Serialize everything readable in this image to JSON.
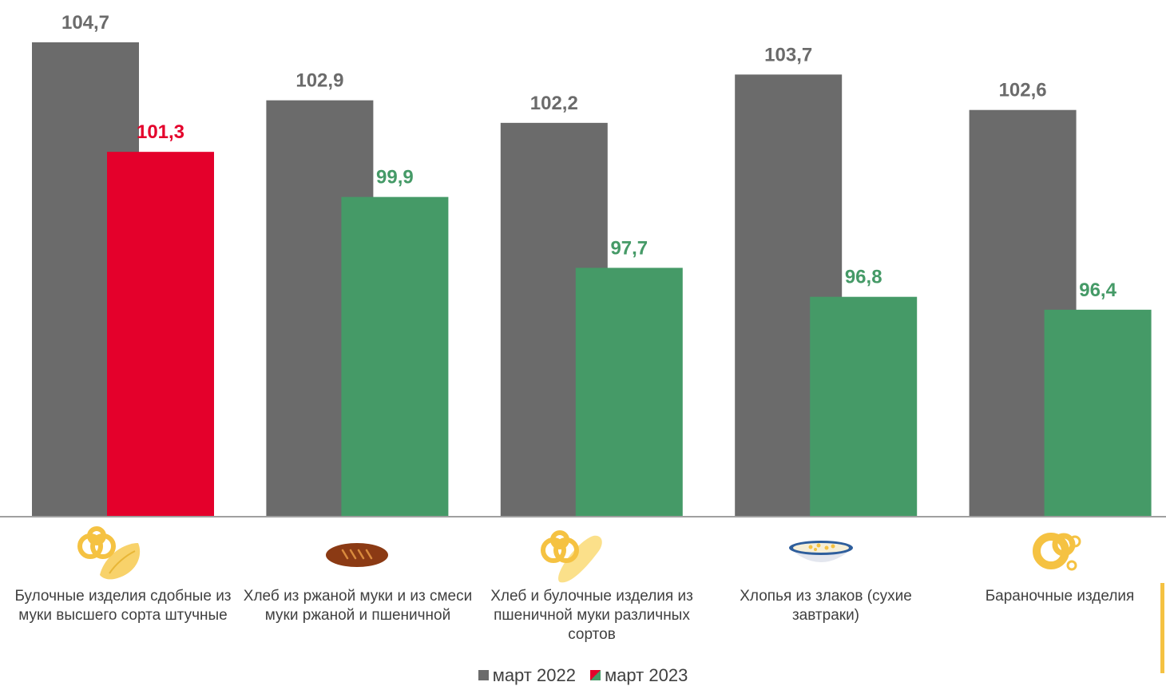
{
  "chart_data": {
    "type": "bar",
    "categories": [
      "Булочные изделия сдобные из муки высшего сорта штучные",
      "Хлеб из ржаной муки и из смеси муки ржаной и пшеничной",
      "Хлеб и булочные изделия из пшеничной муки различных сортов",
      "Хлопья из злаков (сухие завтраки)",
      "Бараночные изделия"
    ],
    "series": [
      {
        "name": "март 2022",
        "values": [
          104.7,
          102.9,
          102.2,
          103.7,
          102.6
        ],
        "labels": [
          "104,7",
          "102,9",
          "102,2",
          "103,7",
          "102,6"
        ]
      },
      {
        "name": "март 2023",
        "values": [
          101.3,
          99.9,
          97.7,
          96.8,
          96.4
        ],
        "labels": [
          "101,3",
          "99,9",
          "97,7",
          "96,8",
          "96,4"
        ]
      }
    ],
    "ylim": [
      90,
      105
    ],
    "grid": false,
    "legend_position": "bottom",
    "colors": {
      "series_2022": "#6B6B6B",
      "increase": "#E4002B",
      "decrease": "#459A67",
      "axis": "#808080",
      "category_text": "#404040",
      "icon_yellow": "#F5C242",
      "accent": "#F5C242"
    },
    "icons": [
      "pretzel-croissant-icon",
      "rye-bread-icon",
      "pretzel-baguette-icon",
      "cereal-bowl-icon",
      "bagels-icon"
    ]
  }
}
